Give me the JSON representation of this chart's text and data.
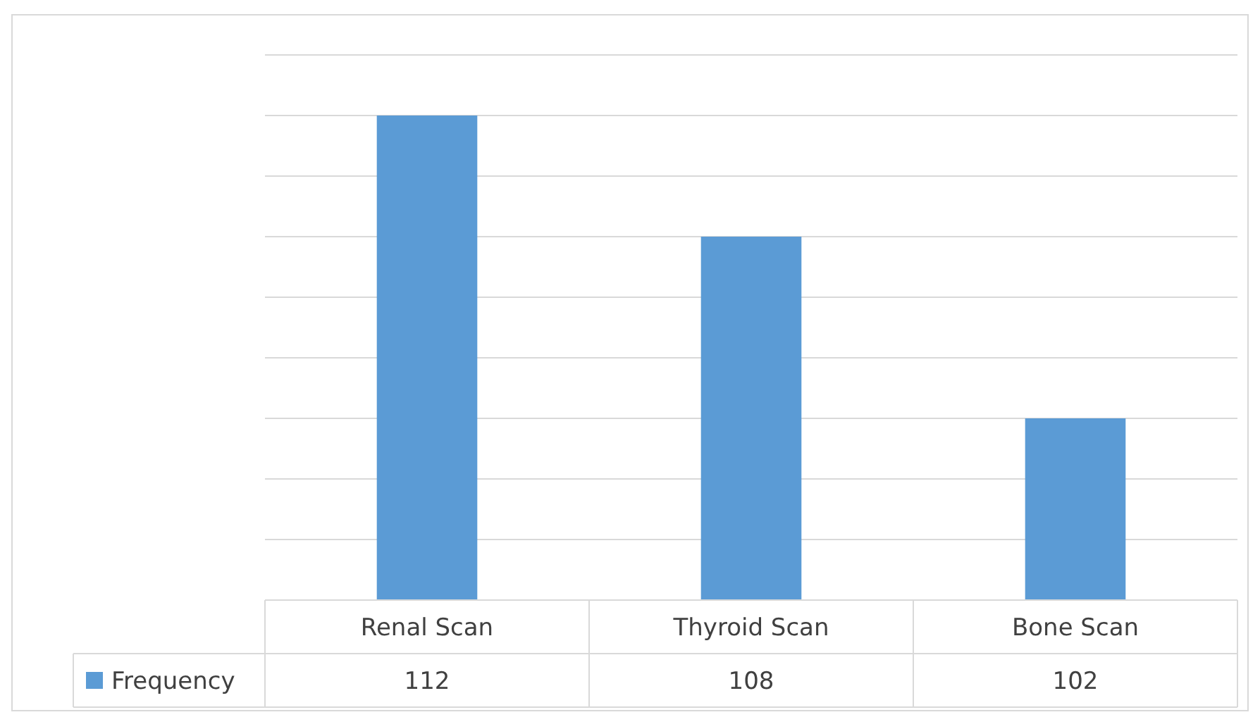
{
  "chart_data": {
    "type": "bar",
    "categories": [
      "Renal Scan",
      "Thyroid Scan",
      "Bone Scan"
    ],
    "series": [
      {
        "name": "Frequency",
        "color": "#5b9bd5",
        "values": [
          112,
          108,
          102
        ]
      }
    ],
    "ylim": [
      96,
      114
    ],
    "yticks": [
      {
        "value": 96,
        "label": null
      },
      {
        "value": 98,
        "label": null
      },
      {
        "value": 100,
        "label": null
      },
      {
        "value": 102,
        "label": null
      },
      {
        "value": 104,
        "label": null
      },
      {
        "value": 106,
        "label": null
      },
      {
        "value": 108,
        "label": null
      },
      {
        "value": 110,
        "label": null
      },
      {
        "value": 112,
        "label": null
      },
      {
        "value": 114,
        "label": null
      }
    ],
    "grid": "y",
    "tick_labels": "x",
    "data_labels": true,
    "legend": "bottom left"
  }
}
